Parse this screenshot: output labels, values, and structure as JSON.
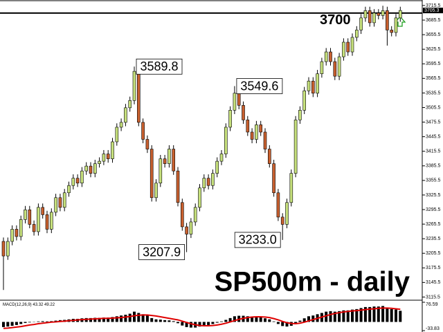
{
  "chart_data": [
    {
      "type": "candlestick",
      "title": "SP500m - daily",
      "open": [
        3230,
        3200,
        3230,
        3255,
        3240,
        3275,
        3295,
        3265,
        3250,
        3300,
        3285,
        3255,
        3290,
        3320,
        3300,
        3330,
        3345,
        3360,
        3350,
        3375,
        3385,
        3370,
        3390,
        3395,
        3410,
        3400,
        3435,
        3465,
        3475,
        3505,
        3520,
        3580,
        3475,
        3440,
        3420,
        3320,
        3350,
        3400,
        3390,
        3420,
        3375,
        3310,
        3260,
        3245,
        3270,
        3300,
        3340,
        3360,
        3345,
        3370,
        3395,
        3410,
        3465,
        3500,
        3535,
        3510,
        3480,
        3455,
        3440,
        3470,
        3455,
        3420,
        3390,
        3330,
        3280,
        3265,
        3310,
        3370,
        3480,
        3500,
        3540,
        3560,
        3535,
        3575,
        3600,
        3620,
        3600,
        3570,
        3610,
        3640,
        3620,
        3650,
        3665,
        3690,
        3705,
        3680,
        3700,
        3695,
        3705,
        3665,
        3660,
        3690
      ],
      "high": [
        3238,
        3238,
        3263,
        3263,
        3283,
        3303,
        3303,
        3273,
        3308,
        3308,
        3293,
        3298,
        3328,
        3328,
        3338,
        3353,
        3368,
        3368,
        3383,
        3393,
        3393,
        3398,
        3403,
        3418,
        3418,
        3443,
        3473,
        3483,
        3513,
        3528,
        3589.8,
        3588,
        3483,
        3448,
        3428,
        3358,
        3408,
        3408,
        3428,
        3428,
        3383,
        3318,
        3268,
        3278,
        3308,
        3348,
        3368,
        3368,
        3378,
        3403,
        3418,
        3473,
        3508,
        3549.6,
        3543,
        3518,
        3488,
        3463,
        3478,
        3478,
        3463,
        3428,
        3398,
        3338,
        3288,
        3318,
        3378,
        3488,
        3508,
        3548,
        3568,
        3568,
        3583,
        3608,
        3628,
        3628,
        3608,
        3618,
        3648,
        3648,
        3658,
        3673,
        3698,
        3713,
        3713,
        3708,
        3708,
        3715,
        3713,
        3673,
        3698,
        3713
      ],
      "low": [
        3130,
        3192,
        3222,
        3232,
        3232,
        3267,
        3257,
        3242,
        3242,
        3277,
        3247,
        3247,
        3282,
        3292,
        3292,
        3322,
        3337,
        3342,
        3342,
        3367,
        3362,
        3362,
        3382,
        3387,
        3392,
        3392,
        3427,
        3457,
        3467,
        3497,
        3512,
        3467,
        3432,
        3412,
        3312,
        3312,
        3342,
        3382,
        3382,
        3367,
        3302,
        3252,
        3207.9,
        3237,
        3262,
        3292,
        3332,
        3337,
        3337,
        3362,
        3387,
        3402,
        3457,
        3492,
        3502,
        3472,
        3447,
        3432,
        3432,
        3447,
        3412,
        3382,
        3322,
        3272,
        3233,
        3257,
        3302,
        3362,
        3472,
        3492,
        3532,
        3527,
        3527,
        3567,
        3592,
        3592,
        3562,
        3562,
        3602,
        3612,
        3612,
        3642,
        3657,
        3682,
        3672,
        3672,
        3687,
        3687,
        3633,
        3652,
        3652,
        3682
      ],
      "close": [
        3200,
        3230,
        3255,
        3240,
        3275,
        3295,
        3265,
        3250,
        3300,
        3285,
        3255,
        3290,
        3320,
        3300,
        3330,
        3345,
        3360,
        3350,
        3375,
        3385,
        3370,
        3390,
        3395,
        3410,
        3400,
        3435,
        3465,
        3475,
        3505,
        3520,
        3580,
        3475,
        3440,
        3420,
        3320,
        3350,
        3400,
        3390,
        3420,
        3375,
        3310,
        3260,
        3245,
        3270,
        3300,
        3340,
        3360,
        3345,
        3370,
        3395,
        3410,
        3465,
        3500,
        3535,
        3510,
        3480,
        3455,
        3440,
        3470,
        3455,
        3420,
        3390,
        3330,
        3280,
        3265,
        3310,
        3370,
        3480,
        3500,
        3540,
        3560,
        3535,
        3575,
        3600,
        3620,
        3600,
        3570,
        3610,
        3640,
        3620,
        3650,
        3665,
        3690,
        3705,
        3680,
        3700,
        3695,
        3705,
        3665,
        3660,
        3690,
        3705.3
      ],
      "up_color": "#c6e07c",
      "down_color": "#c8602f",
      "ylim": [
        3109,
        3724
      ],
      "yticks": [
        3715.5,
        3685.5,
        3655.5,
        3625.5,
        3595.5,
        3565.5,
        3535.5,
        3505.5,
        3475.5,
        3445.5,
        3415.5,
        3385.5,
        3355.5,
        3325.5,
        3295.5,
        3265.5,
        3235.5,
        3205.5,
        3175.5,
        3145.5,
        3115.5
      ],
      "hline": 3700,
      "annotations": [
        3589.8,
        3549.6,
        3207.9,
        {
          "value": 3233,
          "label": "3233.0"
        }
      ]
    },
    {
      "type": "macd",
      "title": "MACD(12,26,9)",
      "color": "#000000",
      "signal_color": "#e00000",
      "values": [
        -20,
        -18,
        -15,
        -12,
        -8,
        -4,
        -2,
        -1,
        2,
        3,
        2,
        3,
        5,
        7,
        8,
        10,
        12,
        12,
        14,
        15,
        15,
        16,
        16,
        17,
        17,
        19,
        22,
        25,
        28,
        32,
        40,
        35,
        30,
        26,
        15,
        10,
        9,
        7,
        6,
        3,
        -5,
        -14,
        -20,
        -22,
        -22,
        -18,
        -14,
        -12,
        -8,
        -3,
        2,
        8,
        15,
        22,
        24,
        24,
        22,
        20,
        20,
        18,
        14,
        10,
        2,
        -8,
        -16,
        -18,
        -15,
        -5,
        5,
        14,
        22,
        25,
        30,
        35,
        40,
        42,
        40,
        42,
        45,
        45,
        48,
        50,
        54,
        58,
        58,
        60,
        60,
        62,
        55,
        50,
        48,
        43.32
      ],
      "signal": [
        -25,
        -24,
        -22,
        -20,
        -18,
        -15,
        -12,
        -10,
        -7,
        -5,
        -3,
        -1,
        0,
        2,
        3,
        5,
        6,
        8,
        9,
        10,
        11,
        12,
        13,
        14,
        14,
        15,
        16,
        17,
        19,
        21,
        24,
        26,
        27,
        27,
        25,
        23,
        20,
        17,
        14,
        11,
        8,
        3,
        -2,
        -7,
        -11,
        -14,
        -15,
        -15,
        -14,
        -12,
        -9,
        -5,
        0,
        5,
        10,
        14,
        17,
        19,
        20,
        20,
        19,
        17,
        13,
        8,
        2,
        -3,
        -6,
        -7,
        -5,
        -1,
        4,
        9,
        14,
        19,
        24,
        29,
        33,
        36,
        39,
        41,
        43,
        44,
        46,
        48,
        50,
        51,
        53,
        54,
        54,
        53,
        51,
        49.22
      ],
      "ylim": [
        -33.83,
        76.59
      ],
      "yticks": [
        76.59,
        -33.83
      ]
    }
  ]
}
